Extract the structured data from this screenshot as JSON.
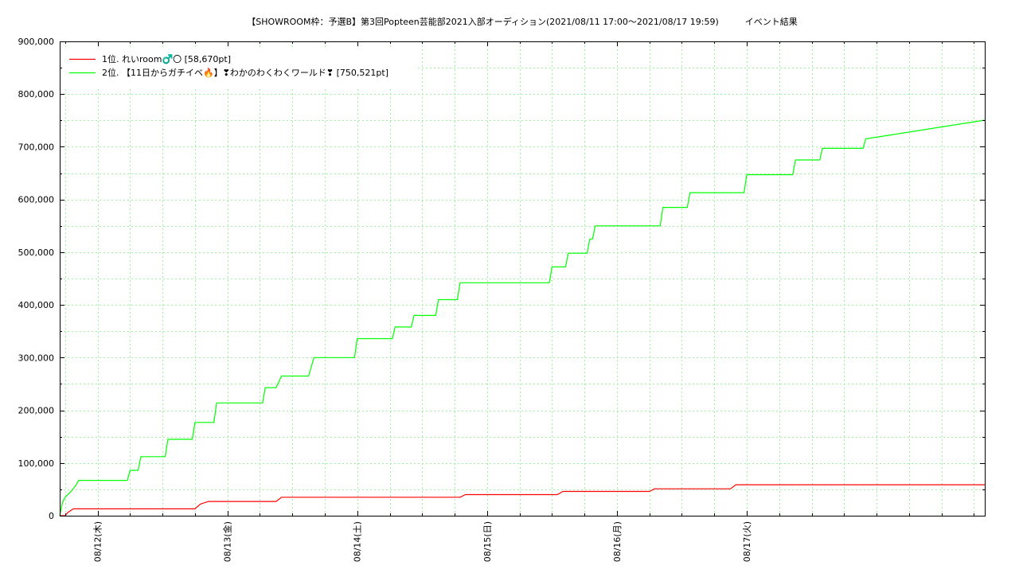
{
  "chart_data": {
    "type": "line",
    "title": "【SHOWROOM枠：予選B】第3回Popteen芸能部2021入部オーディション(2021/08/11 17:00～2021/08/17 19:59)　　　イベント結果",
    "xlabel": "",
    "ylabel": "",
    "x_unit": "hours since 2021/08/11 17:00",
    "xlim": [
      0,
      171
    ],
    "ylim": [
      0,
      900000
    ],
    "y_ticks": [
      0,
      100000,
      200000,
      300000,
      400000,
      500000,
      600000,
      700000,
      800000,
      900000
    ],
    "y_tick_labels": [
      "0",
      "100,000",
      "200,000",
      "300,000",
      "400,000",
      "500,000",
      "600,000",
      "700,000",
      "800,000",
      "900,000"
    ],
    "x_ticks": [
      7,
      31,
      55,
      79,
      103,
      127
    ],
    "x_tick_labels": [
      "08/12(木)",
      "08/13(金)",
      "08/14(土)",
      "08/15(日)",
      "08/16(月)",
      "08/17(火)"
    ],
    "grid": true,
    "legend_position": "top-left",
    "series": [
      {
        "name": "1位. れいroom♂️〇 [58,670pt]",
        "color": "#ff0000",
        "x": [
          0,
          1,
          1.5,
          2.5,
          25,
          26,
          27.5,
          40,
          41,
          74,
          75,
          92,
          93,
          109,
          110,
          124,
          125,
          171
        ],
        "y": [
          0,
          0,
          6000,
          13000,
          13000,
          22000,
          27000,
          27000,
          35000,
          35000,
          40000,
          40000,
          46000,
          46000,
          51000,
          51000,
          58670,
          58670
        ]
      },
      {
        "name": "2位. 【11日からガチイベ🔥】❣わかのわくわくワールド❣ [750,521pt]",
        "color": "#00ff00",
        "x": [
          0,
          0.5,
          1,
          2,
          3,
          3.5,
          12.5,
          13,
          14.5,
          15,
          19.5,
          20,
          24.5,
          25,
          28.5,
          29,
          37.5,
          38,
          40,
          41,
          46,
          47,
          54.5,
          55,
          61.5,
          62,
          65,
          65.5,
          69.5,
          70,
          73.5,
          74,
          90.5,
          91,
          93.5,
          94,
          97.5,
          98,
          98.5,
          99,
          111,
          111.5,
          116,
          116.5,
          126.5,
          127,
          135.5,
          136,
          140.5,
          141,
          148.5,
          149,
          171
        ],
        "y": [
          0,
          25000,
          35000,
          45000,
          58000,
          67000,
          67000,
          86000,
          86000,
          112000,
          112000,
          145000,
          145000,
          177000,
          177000,
          214000,
          214000,
          243000,
          243000,
          265000,
          265000,
          300000,
          300000,
          336000,
          336000,
          358000,
          358000,
          380000,
          380000,
          410000,
          410000,
          442000,
          442000,
          472000,
          472000,
          498000,
          498000,
          525000,
          525000,
          550000,
          550000,
          585000,
          585000,
          613000,
          613000,
          647000,
          647000,
          675000,
          675000,
          697000,
          697000,
          715000,
          750521
        ]
      }
    ]
  }
}
